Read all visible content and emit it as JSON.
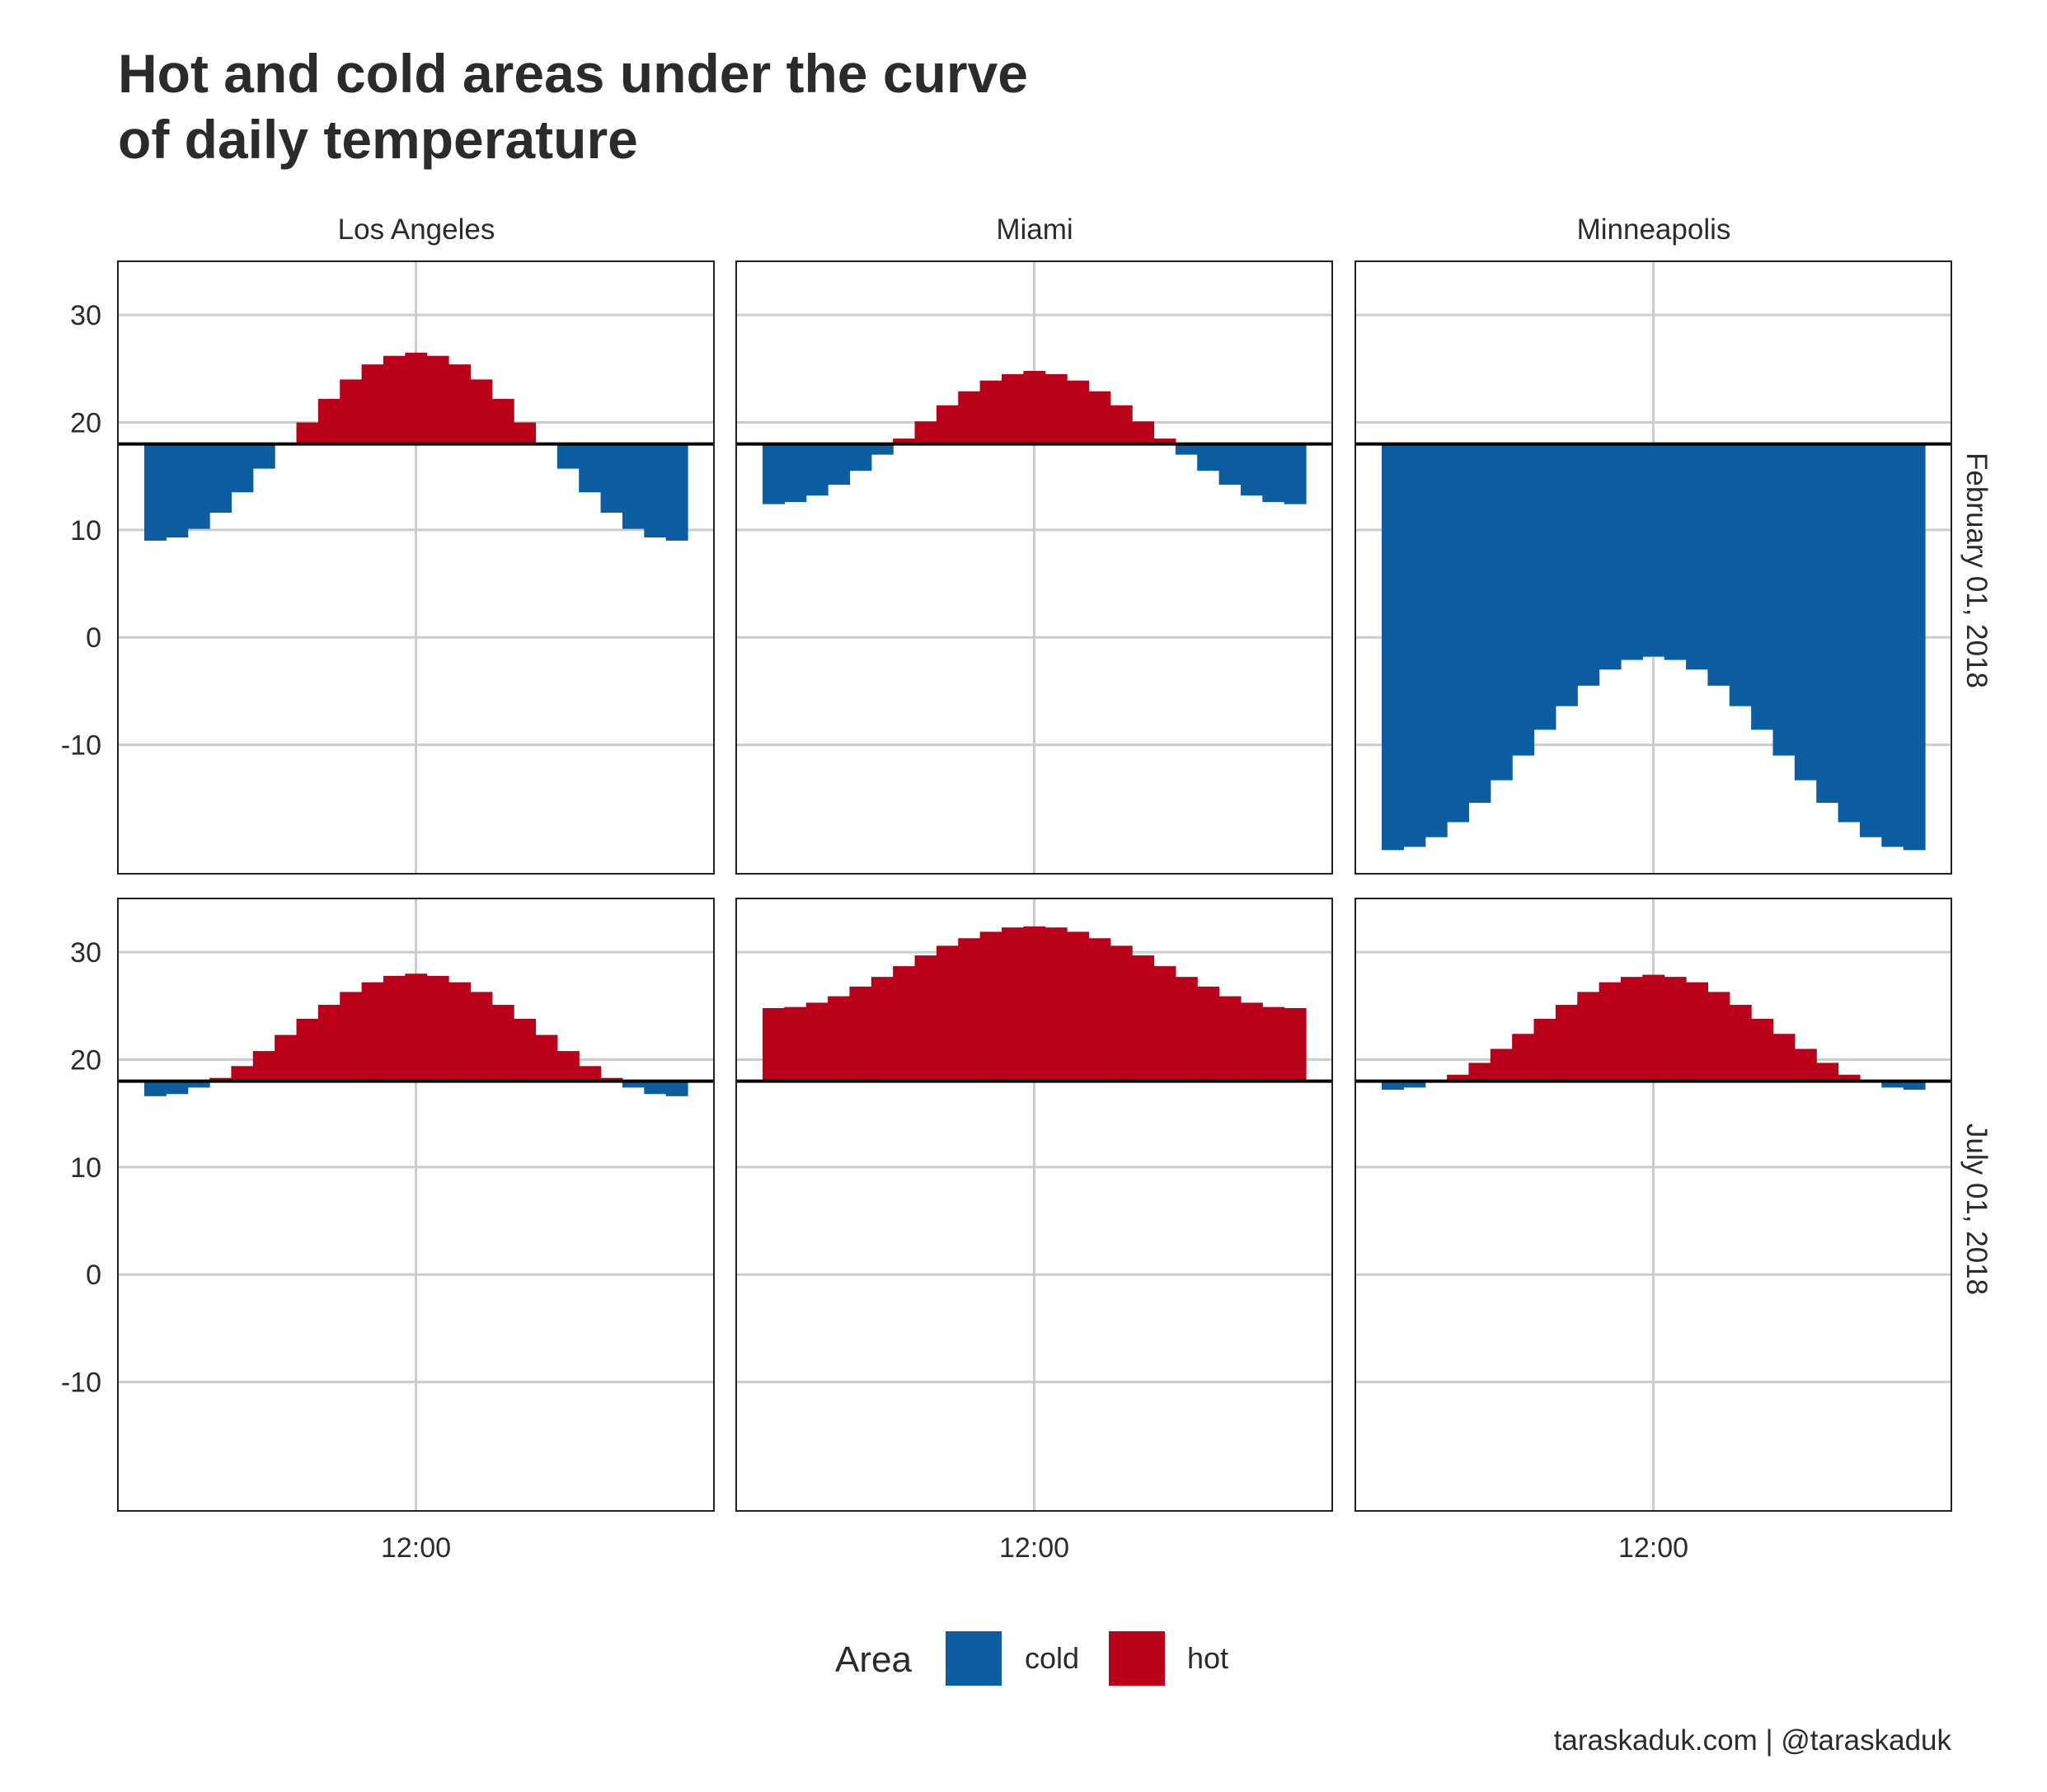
{
  "chart_data": {
    "type": "bar",
    "title": [
      "Hot and cold areas under the curve",
      "of daily temperature"
    ],
    "caption": "taraskaduk.com | @taraskaduk",
    "baseline": 18,
    "ylim": [
      -22,
      35
    ],
    "y_ticks": [
      30,
      20,
      10,
      0,
      -10
    ],
    "x_ticks": [
      "12:00"
    ],
    "hours": [
      0,
      1,
      2,
      3,
      4,
      5,
      6,
      7,
      8,
      9,
      10,
      11,
      12,
      13,
      14,
      15,
      16,
      17,
      18,
      19,
      20,
      21,
      22,
      23,
      24
    ],
    "noon_hour": 12,
    "columns": [
      "Los Angeles",
      "Miami",
      "Minneapolis"
    ],
    "rows": [
      "February 01, 2018",
      "July 01, 2018"
    ],
    "legend": {
      "title": "Area",
      "items": [
        {
          "label": "cold",
          "color": "#0c5ea1"
        },
        {
          "label": "hot",
          "color": "#bb0019"
        }
      ]
    },
    "colors": {
      "cold": "#0c5ea1",
      "hot": "#bb0019",
      "baseline": "#000000",
      "grid": "#cccccc"
    },
    "panels": [
      {
        "row": 0,
        "col": 0,
        "values": [
          9.0,
          9.3,
          10.1,
          11.6,
          13.5,
          15.7,
          18.0,
          20.0,
          22.2,
          24.0,
          25.4,
          26.2,
          26.5,
          26.2,
          25.4,
          24.0,
          22.2,
          20.0,
          18.0,
          15.7,
          13.5,
          11.6,
          10.1,
          9.3,
          9.0
        ]
      },
      {
        "row": 0,
        "col": 1,
        "values": [
          12.4,
          12.6,
          13.2,
          14.2,
          15.5,
          17.0,
          18.5,
          20.1,
          21.6,
          22.9,
          23.9,
          24.5,
          24.8,
          24.5,
          23.9,
          22.9,
          21.6,
          20.1,
          18.5,
          17.0,
          15.5,
          14.2,
          13.2,
          12.6,
          12.4
        ]
      },
      {
        "row": 0,
        "col": 2,
        "values": [
          -19.8,
          -19.5,
          -18.6,
          -17.2,
          -15.4,
          -13.3,
          -11.0,
          -8.6,
          -6.4,
          -4.5,
          -3.0,
          -2.1,
          -1.8,
          -2.1,
          -3.0,
          -4.5,
          -6.4,
          -8.6,
          -11.0,
          -13.3,
          -15.4,
          -17.2,
          -18.6,
          -19.5,
          -19.8
        ]
      },
      {
        "row": 1,
        "col": 0,
        "values": [
          16.6,
          16.8,
          17.4,
          18.3,
          19.4,
          20.8,
          22.3,
          23.8,
          25.1,
          26.3,
          27.2,
          27.8,
          28.0,
          27.8,
          27.2,
          26.3,
          25.1,
          23.8,
          22.3,
          20.8,
          19.4,
          18.3,
          17.4,
          16.8,
          16.6
        ]
      },
      {
        "row": 1,
        "col": 1,
        "values": [
          24.8,
          24.9,
          25.3,
          25.9,
          26.8,
          27.7,
          28.7,
          29.7,
          30.6,
          31.3,
          31.9,
          32.3,
          32.4,
          32.3,
          31.9,
          31.3,
          30.6,
          29.7,
          28.7,
          27.7,
          26.8,
          25.9,
          25.3,
          24.9,
          24.8
        ]
      },
      {
        "row": 1,
        "col": 2,
        "values": [
          17.2,
          17.4,
          18.0,
          18.6,
          19.7,
          21.0,
          22.4,
          23.8,
          25.1,
          26.3,
          27.2,
          27.7,
          27.9,
          27.7,
          27.2,
          26.3,
          25.1,
          23.8,
          22.4,
          21.0,
          19.7,
          18.6,
          18.0,
          17.4,
          17.2
        ]
      }
    ]
  }
}
